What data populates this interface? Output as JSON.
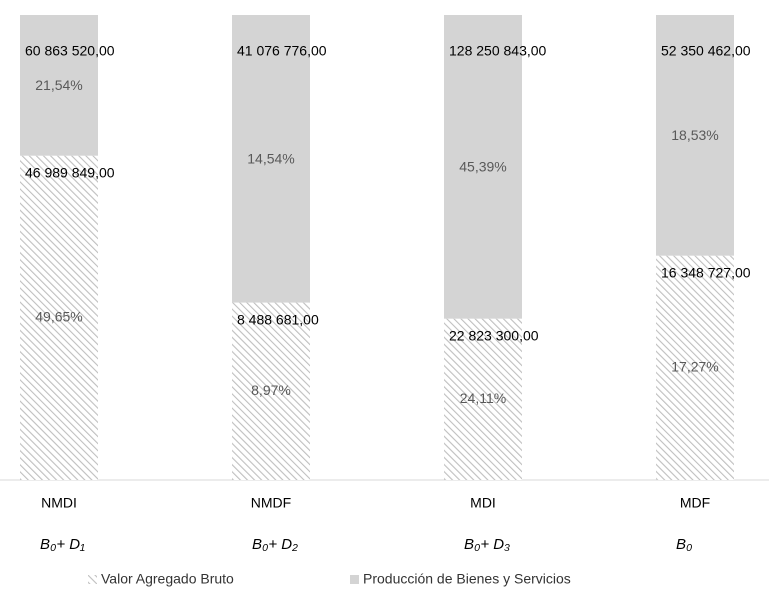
{
  "chart_data": {
    "type": "stacked_bar_100",
    "categories": [
      "NMDI",
      "NMDF",
      "MDI",
      "MDF"
    ],
    "subcategories": [
      "B₀+ D₁",
      "B₀+ D₂",
      "B₀+ D₃",
      "B₀"
    ],
    "series": [
      {
        "name": "Valor Agregado Bruto",
        "color": "#bfbfbf",
        "pattern": "hatch",
        "values": [
          49.65,
          8.97,
          24.11,
          17.27
        ],
        "value_labels": [
          "49,65%",
          "8,97%",
          "24,11%",
          "17,27%"
        ],
        "amount_labels": [
          "46 989 849,00",
          "8 488 681,00",
          "22 823 300,00",
          "16 348 727,00"
        ]
      },
      {
        "name": "Producción de Bienes y Servicios",
        "color": "#d4d4d4",
        "pattern": "solid",
        "values": [
          21.54,
          14.54,
          45.39,
          18.53
        ],
        "value_labels": [
          "21,54%",
          "14,54%",
          "45,39%",
          "18,53%"
        ],
        "amount_labels": [
          "60 863 520,00",
          "41 076 776,00",
          "128 250 843,00",
          "52 350 462,00"
        ]
      }
    ]
  }
}
